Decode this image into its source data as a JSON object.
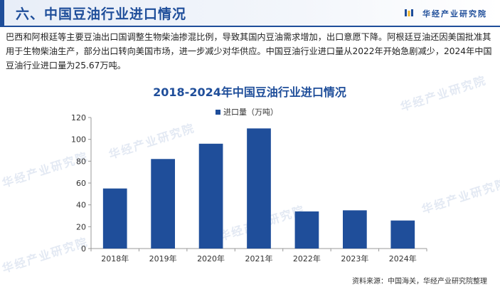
{
  "header": {
    "title": "六、中国豆油行业进口情况",
    "brand": "华经产业研究院"
  },
  "paragraph": "巴西和阿根廷等主要豆油出口国调整生物柴油掺混比例，导致其国内豆油需求增加，出口意愿下降。阿根廷豆油还因美国批准其用于生物柴油生产，部分出口转向美国市场，进一步减少对华供应。中国豆油行业进口量从2022年开始急剧减少，2024年中国豆油行业进口量为25.67万吨。",
  "watermark": "华经产业研究院",
  "source": "资料来源：中国海关，华经产业研究院整理",
  "colors": {
    "accent": "#1f4e9a",
    "bar": "#1f4e9a"
  },
  "chart_data": {
    "type": "bar",
    "title": "2018-2024年中国豆油行业进口情况",
    "categories": [
      "2018年",
      "2019年",
      "2020年",
      "2021年",
      "2022年",
      "2023年",
      "2024年"
    ],
    "series": [
      {
        "name": "进口量（万吨）",
        "values": [
          55,
          82,
          96,
          110,
          34,
          35,
          25.67
        ]
      }
    ],
    "ylim": [
      0,
      120
    ],
    "yticks": [
      0,
      20,
      40,
      60,
      80,
      100,
      120
    ],
    "legend": "top-center",
    "grid": false
  }
}
